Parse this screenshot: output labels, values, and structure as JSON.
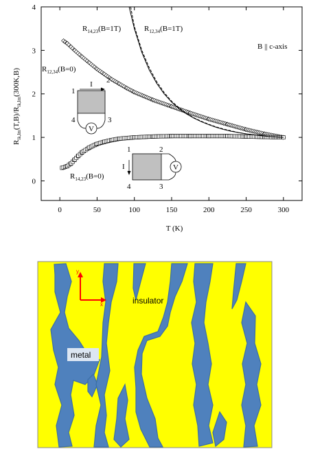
{
  "chart_data": [
    {
      "type": "scatter",
      "xlabel": "T (K)",
      "ylabel": {
        "main": "R",
        "sub1": "ik,lm",
        "mid": "(T,B)/R",
        "sub2": "ik,lm",
        "tail": "(300K,B)"
      },
      "xlim": [
        -25,
        325
      ],
      "ylim": [
        -0.45,
        4
      ],
      "x_ticks": [
        "0",
        "50",
        "100",
        "150",
        "200",
        "250",
        "300"
      ],
      "y_ticks": [
        "0",
        "1",
        "2",
        "3",
        "4"
      ],
      "annotation": "B || c-axis",
      "series": [
        {
          "name": "R12,34(B=0)",
          "label": {
            "main": "R",
            "sub": "12,34",
            "tail": "(B=0)"
          },
          "marker": "diamond",
          "x": [
            5,
            10,
            15,
            20,
            30,
            40,
            50,
            60,
            70,
            80,
            90,
            100,
            125,
            150,
            175,
            200,
            225,
            250,
            275,
            300
          ],
          "y": [
            3.22,
            3.16,
            3.08,
            3.0,
            2.85,
            2.71,
            2.57,
            2.45,
            2.33,
            2.23,
            2.13,
            2.04,
            1.86,
            1.71,
            1.56,
            1.42,
            1.3,
            1.18,
            1.08,
            1.0
          ]
        },
        {
          "name": "R14,23(B=0)",
          "label": {
            "main": "R",
            "sub": "14,23",
            "tail": "(B=0)"
          },
          "marker": "square",
          "x": [
            3,
            5,
            10,
            15,
            20,
            25,
            30,
            40,
            50,
            60,
            70,
            80,
            100,
            125,
            150,
            175,
            200,
            225,
            250,
            275,
            300
          ],
          "y": [
            0.3,
            0.31,
            0.34,
            0.4,
            0.49,
            0.58,
            0.66,
            0.77,
            0.85,
            0.9,
            0.94,
            0.97,
            1.0,
            1.02,
            1.03,
            1.03,
            1.03,
            1.03,
            1.02,
            1.01,
            1.0
          ]
        },
        {
          "name": "R14,23(B=1T)",
          "label": {
            "main": "R",
            "sub": "14,23",
            "tail": "(B=1T)"
          },
          "marker": "line-solid",
          "x": [
            93,
            100,
            110,
            120,
            130,
            140,
            150,
            160,
            170,
            180,
            190,
            200,
            210,
            220,
            230,
            240,
            250,
            260,
            270,
            280,
            290,
            300
          ],
          "y": [
            4.0,
            3.5,
            2.95,
            2.55,
            2.24,
            2.0,
            1.81,
            1.66,
            1.54,
            1.44,
            1.36,
            1.29,
            1.23,
            1.18,
            1.14,
            1.11,
            1.08,
            1.06,
            1.04,
            1.02,
            1.01,
            1.0
          ]
        },
        {
          "name": "R12,34(B=1T)",
          "label": {
            "main": "R",
            "sub": "12,34",
            "tail": "(B=1T)"
          },
          "marker": "line-dashed",
          "x": [
            95,
            100,
            110,
            120,
            130,
            140,
            150,
            160,
            170,
            180,
            190,
            200,
            210,
            220,
            230,
            240,
            250,
            260,
            270,
            280,
            290,
            300
          ],
          "y": [
            4.0,
            3.55,
            3.0,
            2.6,
            2.28,
            2.03,
            1.83,
            1.68,
            1.55,
            1.45,
            1.37,
            1.3,
            1.24,
            1.19,
            1.15,
            1.11,
            1.08,
            1.06,
            1.04,
            1.02,
            1.01,
            1.0
          ]
        }
      ],
      "insets": [
        {
          "name": "r12-34-contacts",
          "labels": [
            "1",
            "2",
            "4",
            "3",
            "I",
            "V"
          ]
        },
        {
          "name": "r14-23-contacts",
          "labels": [
            "1",
            "2",
            "4",
            "3",
            "I",
            "V"
          ]
        }
      ]
    }
  ],
  "map": {
    "colors": {
      "metal": "#4f81bd",
      "insulator": "#ffff00",
      "metal_edge": "#3a6ea5",
      "axis_arrow": "#ff0000"
    },
    "labels": {
      "insulator": "insulator",
      "metal": "metal"
    },
    "axes": {
      "x": "x",
      "y": "y"
    }
  }
}
